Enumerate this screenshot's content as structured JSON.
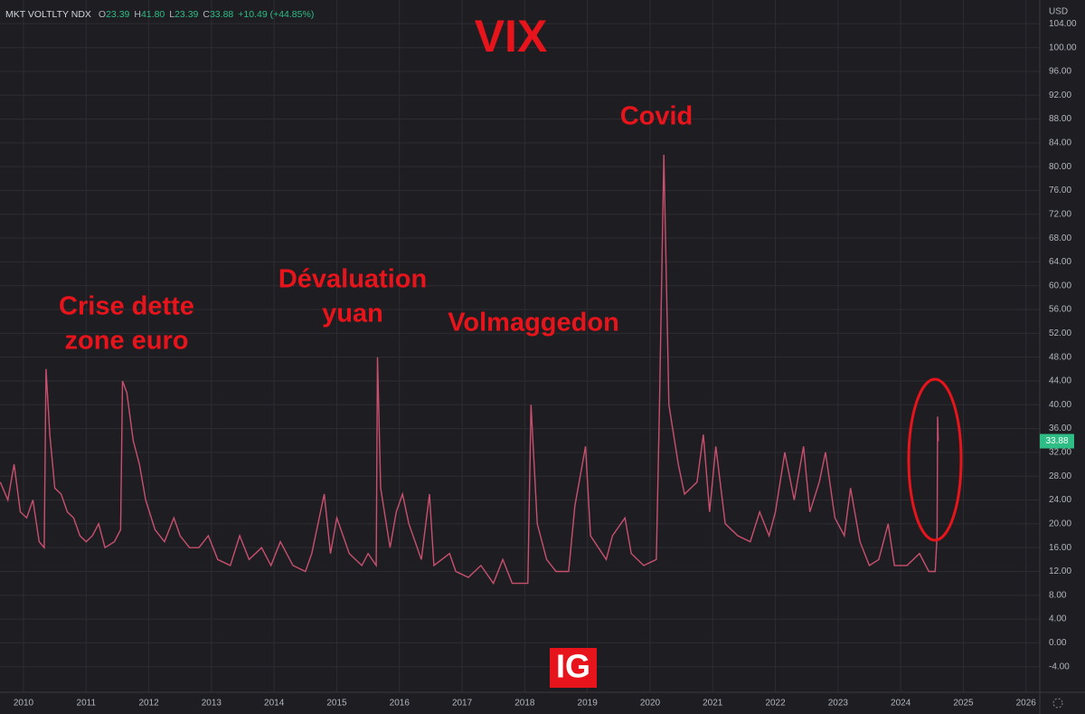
{
  "chart_data": {
    "type": "line",
    "title": "VIX",
    "header": {
      "name": "MKT VOLTLTY NDX",
      "ohlc": [
        {
          "label": "O",
          "value": "23.39"
        },
        {
          "label": "H",
          "value": "41.80"
        },
        {
          "label": "L",
          "value": "23.39"
        },
        {
          "label": "C",
          "value": "33.88"
        }
      ],
      "change": "+10.49 (+44.85%)"
    },
    "currency": "USD",
    "logo": "IG",
    "annotations": [
      {
        "lines": [
          "Crise dette",
          "zone euro"
        ]
      },
      {
        "lines": [
          "Dévaluation",
          "yuan"
        ]
      },
      {
        "lines": [
          "Volmaggedon"
        ]
      },
      {
        "lines": [
          "Covid"
        ]
      }
    ],
    "xlim": [
      2009.625,
      2026.22
    ],
    "xticks": [
      2010,
      2011,
      2012,
      2013,
      2014,
      2015,
      2016,
      2017,
      2018,
      2019,
      2020,
      2021,
      2022,
      2023,
      2024,
      2025,
      2026
    ],
    "ylim": [
      -8.3,
      108
    ],
    "yticks": [
      {
        "value": -4,
        "label": "-4.00"
      },
      {
        "value": 0,
        "label": "0.00"
      },
      {
        "value": 4,
        "label": "4.00"
      },
      {
        "value": 8,
        "label": "8.00"
      },
      {
        "value": 12,
        "label": "12.00"
      },
      {
        "value": 16,
        "label": "16.00"
      },
      {
        "value": 20,
        "label": "20.00"
      },
      {
        "value": 24,
        "label": "24.00"
      },
      {
        "value": 28,
        "label": "28.00"
      },
      {
        "value": 32,
        "label": "32.00"
      },
      {
        "value": 36,
        "label": "36.00"
      },
      {
        "value": 40,
        "label": "40.00"
      },
      {
        "value": 44,
        "label": "44.00"
      },
      {
        "value": 48,
        "label": "48.00"
      },
      {
        "value": 52,
        "label": "52.00"
      },
      {
        "value": 56,
        "label": "56.00"
      },
      {
        "value": 60,
        "label": "60.00"
      },
      {
        "value": 64,
        "label": "64.00"
      },
      {
        "value": 68,
        "label": "68.00"
      },
      {
        "value": 72,
        "label": "72.00"
      },
      {
        "value": 76,
        "label": "76.00"
      },
      {
        "value": 80,
        "label": "80.00"
      },
      {
        "value": 84,
        "label": "84.00"
      },
      {
        "value": 88,
        "label": "88.00"
      },
      {
        "value": 92,
        "label": "92.00"
      },
      {
        "value": 96,
        "label": "96.00"
      },
      {
        "value": 100,
        "label": "100.00"
      },
      {
        "value": 104,
        "label": "104.00"
      }
    ],
    "grid": true,
    "series": [
      {
        "color": "#c8506e",
        "x": [
          2009.63,
          2009.75,
          2009.85,
          2009.95,
          2010.05,
          2010.15,
          2010.25,
          2010.33,
          2010.36,
          2010.42,
          2010.5,
          2010.6,
          2010.7,
          2010.8,
          2010.9,
          2011.0,
          2011.1,
          2011.2,
          2011.3,
          2011.45,
          2011.55,
          2011.58,
          2011.65,
          2011.75,
          2011.85,
          2011.95,
          2012.1,
          2012.25,
          2012.4,
          2012.5,
          2012.65,
          2012.8,
          2012.95,
          2013.1,
          2013.3,
          2013.45,
          2013.6,
          2013.8,
          2013.95,
          2014.1,
          2014.3,
          2014.5,
          2014.6,
          2014.8,
          2014.9,
          2015.0,
          2015.2,
          2015.4,
          2015.5,
          2015.63,
          2015.65,
          2015.7,
          2015.85,
          2015.95,
          2016.05,
          2016.15,
          2016.35,
          2016.48,
          2016.55,
          2016.8,
          2016.9,
          2017.1,
          2017.3,
          2017.5,
          2017.65,
          2017.8,
          2017.95,
          2018.05,
          2018.1,
          2018.2,
          2018.35,
          2018.5,
          2018.7,
          2018.8,
          2018.97,
          2019.05,
          2019.3,
          2019.4,
          2019.6,
          2019.7,
          2019.9,
          2020.1,
          2020.15,
          2020.22,
          2020.3,
          2020.45,
          2020.55,
          2020.75,
          2020.85,
          2020.95,
          2021.05,
          2021.2,
          2021.4,
          2021.6,
          2021.75,
          2021.9,
          2022.0,
          2022.15,
          2022.3,
          2022.45,
          2022.55,
          2022.7,
          2022.8,
          2022.95,
          2023.1,
          2023.2,
          2023.35,
          2023.5,
          2023.65,
          2023.8,
          2023.9,
          2024.1,
          2024.3,
          2024.45,
          2024.55,
          2024.58,
          2024.59,
          2024.6
        ],
        "values": [
          27,
          24,
          30,
          22,
          21,
          24,
          17,
          16,
          46,
          35,
          26,
          25,
          22,
          21,
          18,
          17,
          18,
          20,
          16,
          17,
          19,
          44,
          42,
          34,
          30,
          24,
          19,
          17,
          21,
          18,
          16,
          16,
          18,
          14,
          13,
          18,
          14,
          16,
          13,
          17,
          13,
          12,
          15,
          25,
          15,
          21,
          15,
          13,
          15,
          13,
          48,
          26,
          16,
          22,
          25,
          20,
          14,
          25,
          13,
          15,
          12,
          11,
          13,
          10,
          14,
          10,
          10,
          10,
          40,
          20,
          14,
          12,
          12,
          23,
          33,
          18,
          14,
          18,
          21,
          15,
          13,
          14,
          40,
          82,
          40,
          30,
          25,
          27,
          35,
          22,
          33,
          20,
          18,
          17,
          22,
          18,
          22,
          32,
          24,
          33,
          22,
          27,
          32,
          21,
          18,
          26,
          17,
          13,
          14,
          20,
          13,
          13,
          15,
          12,
          12,
          18,
          38,
          33.88
        ]
      }
    ]
  }
}
